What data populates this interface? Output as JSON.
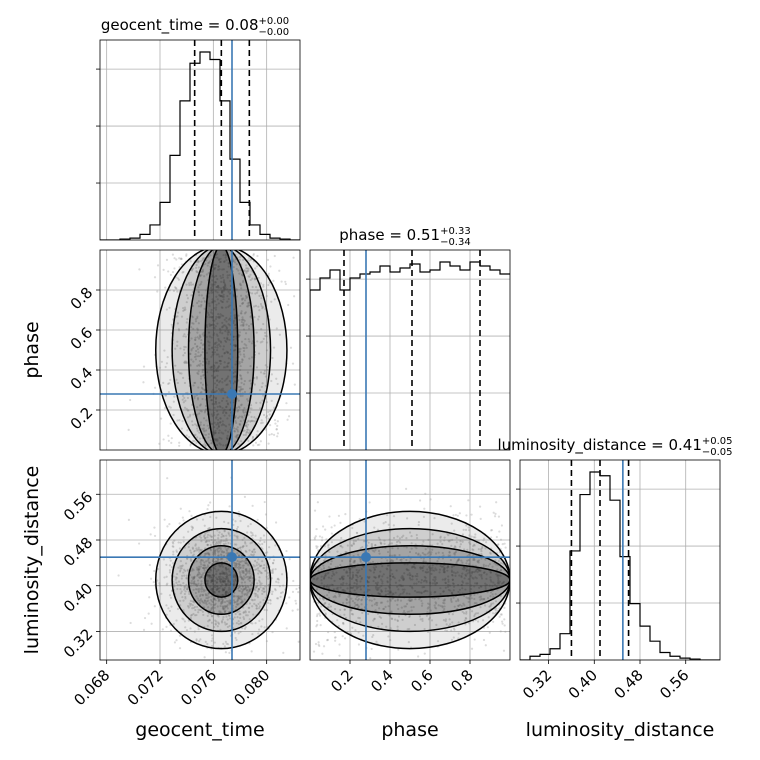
{
  "chart_data": {
    "type": "corner",
    "parameters": [
      "geocent_time",
      "phase",
      "luminosity_distance"
    ],
    "axis_labels": [
      "geocent_time",
      "phase",
      "luminosity_distance"
    ],
    "ranges": {
      "geocent_time": [
        0.0675,
        0.0825
      ],
      "phase": [
        0.0,
        1.0
      ],
      "luminosity_distance": [
        0.27,
        0.62
      ]
    },
    "ticks": {
      "geocent_time": [
        "0.068",
        "0.072",
        "0.076",
        "0.080"
      ],
      "phase": [
        "0.2",
        "0.4",
        "0.6",
        "0.8"
      ],
      "luminosity_distance": [
        "0.32",
        "0.40",
        "0.48",
        "0.56"
      ]
    },
    "injection": {
      "geocent_time": 0.0774,
      "phase": 0.28,
      "luminosity_distance": 0.45
    },
    "quantiles": {
      "geocent_time": [
        0.0746,
        0.0766,
        0.0787
      ],
      "phase": [
        0.17,
        0.51,
        0.85
      ],
      "luminosity_distance": [
        0.36,
        0.41,
        0.46
      ]
    },
    "titles": {
      "geocent_time": {
        "label": "geocent_time = 0.08",
        "upper": "+0.00",
        "lower": "−0.00"
      },
      "phase": {
        "label": "phase = 0.51",
        "upper": "+0.33",
        "lower": "−0.34"
      },
      "luminosity_distance": {
        "label": "luminosity_distance = 0.41",
        "upper": "+0.05",
        "lower": "−0.05"
      }
    },
    "marginals": {
      "geocent_time": {
        "bins": 20,
        "values": [
          0,
          0,
          0.5,
          1,
          3,
          8,
          20,
          45,
          74,
          94,
          100,
          96,
          74,
          43,
          20,
          8,
          3,
          1,
          0.5,
          0
        ]
      },
      "phase": {
        "bins": 20,
        "values": [
          80,
          86,
          90,
          80,
          86,
          88,
          89,
          92,
          89,
          91,
          93,
          89,
          90,
          94,
          92,
          90,
          94,
          92,
          90,
          88
        ]
      },
      "luminosity_distance": {
        "bins": 20,
        "values": [
          0,
          2,
          3,
          6,
          14,
          58,
          88,
          100,
          98,
          85,
          55,
          30,
          18,
          10,
          4,
          2,
          1,
          0.5,
          0,
          0
        ]
      }
    },
    "accent_color": "#3a78b4",
    "grid": true,
    "colors": {
      "line": "#000000",
      "truth": "#3a78b4",
      "grid": "#b0b0b0"
    }
  }
}
